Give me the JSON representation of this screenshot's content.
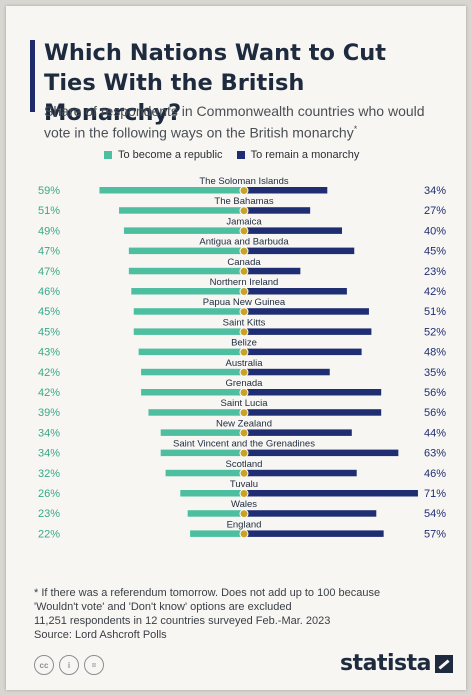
{
  "title": "Which Nations Want to Cut Ties With the British Monarchy?",
  "subtitle": "Share of respondents in Commonwealth countries who would vote in the following ways on the British monarchy",
  "subtitle_mark": "*",
  "colors": {
    "republic": "#4dbfa0",
    "monarchy": "#1f2e73",
    "title": "#1e2b3f",
    "accent": "#1f2a6b"
  },
  "legend": {
    "republic": "To become a republic",
    "monarchy": "To remain a monarchy"
  },
  "chart_data": {
    "type": "bar",
    "orientation": "horizontal-diverging",
    "categories": [
      "The Soloman Islands",
      "The Bahamas",
      "Jamaica",
      "Antigua and Barbuda",
      "Canada",
      "Northern Ireland",
      "Papua New Guinea",
      "Saint Kitts",
      "Belize",
      "Australia",
      "Grenada",
      "Saint Lucia",
      "New Zealand",
      "Saint Vincent and the Grenadines",
      "Scotland",
      "Tuvalu",
      "Wales",
      "England"
    ],
    "series": [
      {
        "name": "To become a republic",
        "values": [
          59,
          51,
          49,
          47,
          47,
          46,
          45,
          45,
          43,
          42,
          42,
          39,
          34,
          34,
          32,
          26,
          23,
          22
        ],
        "labels": [
          "59%",
          "51%",
          "49%",
          "47%",
          "47%",
          "46%",
          "45%",
          "45%",
          "43%",
          "42%",
          "42%",
          "39%",
          "34%",
          "34%",
          "32%",
          "26%",
          "23%",
          "22%"
        ]
      },
      {
        "name": "To remain a monarchy",
        "values": [
          34,
          27,
          40,
          45,
          23,
          42,
          51,
          52,
          48,
          35,
          56,
          56,
          44,
          63,
          46,
          71,
          54,
          57
        ],
        "labels": [
          "34%",
          "27%",
          "40%",
          "45%",
          "23%",
          "42%",
          "51%",
          "52%",
          "48%",
          "35%",
          "56%",
          "56%",
          "44%",
          "63%",
          "46%",
          "71%",
          "54%",
          "57%"
        ]
      }
    ],
    "unit": "%"
  },
  "footnote": {
    "line1": "* If there was a referendum tomorrow. Does not add up to 100 because",
    "line2": "'Wouldn't vote' and 'Don't know' options are excluded",
    "line3": "11,251 respondents in 12 countries surveyed Feb.-Mar. 2023",
    "source": "Source: Lord Ashcroft Polls"
  },
  "icons": [
    "cc-icon",
    "by-icon",
    "nd-icon"
  ],
  "logo": "statista"
}
